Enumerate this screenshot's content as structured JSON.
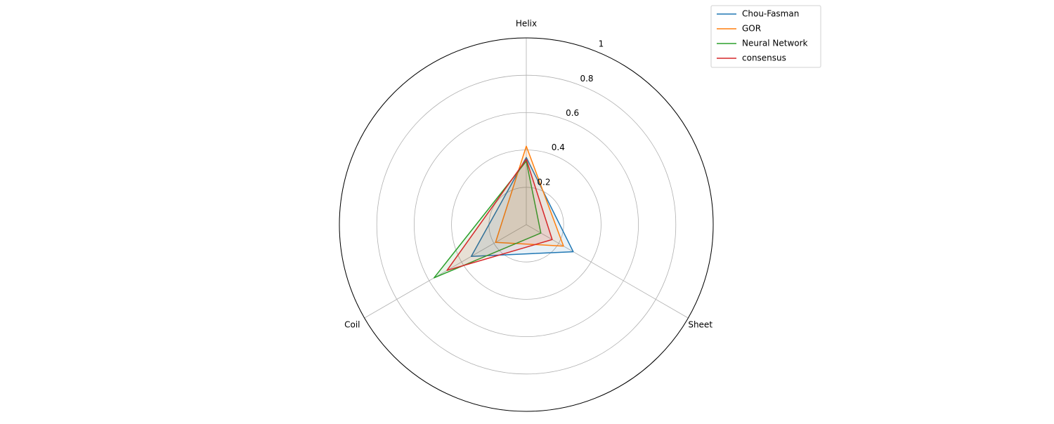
{
  "chart_data": {
    "type": "radar",
    "categories": [
      "Helix",
      "Sheet",
      "Coil"
    ],
    "series": [
      {
        "name": "Chou-Fasman",
        "color": "#1f77b4",
        "values": [
          0.36,
          0.29,
          0.34
        ]
      },
      {
        "name": "GOR",
        "color": "#ff7f0e",
        "values": [
          0.42,
          0.23,
          0.19
        ]
      },
      {
        "name": "Neural Network",
        "color": "#2ca02c",
        "values": [
          0.34,
          0.09,
          0.57
        ]
      },
      {
        "name": "consensus",
        "color": "#d62728",
        "values": [
          0.35,
          0.16,
          0.49
        ]
      }
    ],
    "ylim": [
      0,
      1.0
    ],
    "yticks": [
      0.2,
      0.4,
      0.6,
      0.8,
      1.0
    ],
    "grid": true,
    "legend": "upper right"
  }
}
